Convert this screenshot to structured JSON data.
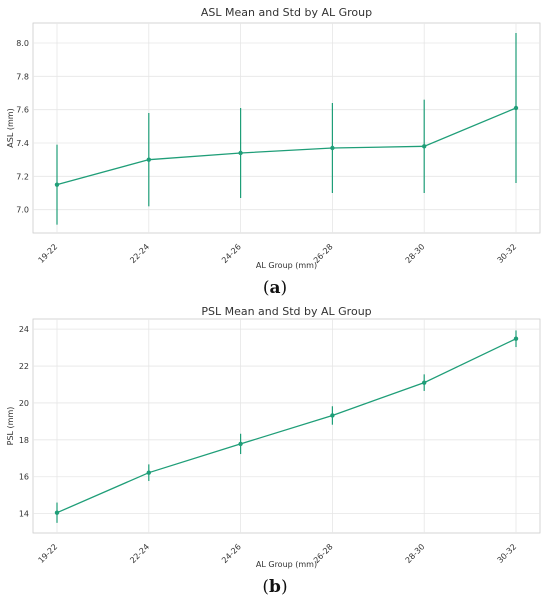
{
  "accent_color": "#1f9e78",
  "chart_data": [
    {
      "type": "line",
      "title": "ASL Mean and Std by AL Group",
      "xlabel": "AL Group (mm)",
      "ylabel": "ASL (mm)",
      "panel": "(a)",
      "panel_letter": "a",
      "categories": [
        "19-22",
        "22-24",
        "24-26",
        "26-28",
        "28-30",
        "30-32"
      ],
      "series": [
        {
          "values": [
            7.15,
            7.3,
            7.34,
            7.37,
            7.38,
            7.61
          ],
          "std": [
            0.24,
            0.28,
            0.27,
            0.27,
            0.28,
            0.45
          ]
        }
      ],
      "ylim": [
        6.86,
        8.12
      ],
      "yticks": [
        7.0,
        7.2,
        7.4,
        7.6,
        7.8,
        8.0
      ],
      "ytick_labels": [
        "7.0",
        "7.2",
        "7.4",
        "7.6",
        "7.8",
        "8.0"
      ],
      "grid": true
    },
    {
      "type": "line",
      "title": "PSL Mean and Std by AL Group",
      "xlabel": "AL Group (mm)",
      "ylabel": "PSL (mm)",
      "panel": "(b)",
      "panel_letter": "b",
      "categories": [
        "19-22",
        "22-24",
        "24-26",
        "26-28",
        "28-30",
        "30-32"
      ],
      "series": [
        {
          "values": [
            14.05,
            16.22,
            17.78,
            19.32,
            21.1,
            23.48
          ],
          "std": [
            0.55,
            0.45,
            0.55,
            0.5,
            0.45,
            0.45
          ]
        }
      ],
      "ylim": [
        12.95,
        24.55
      ],
      "yticks": [
        14,
        16,
        18,
        20,
        22,
        24
      ],
      "ytick_labels": [
        "14",
        "16",
        "18",
        "20",
        "22",
        "24"
      ],
      "grid": true
    }
  ]
}
